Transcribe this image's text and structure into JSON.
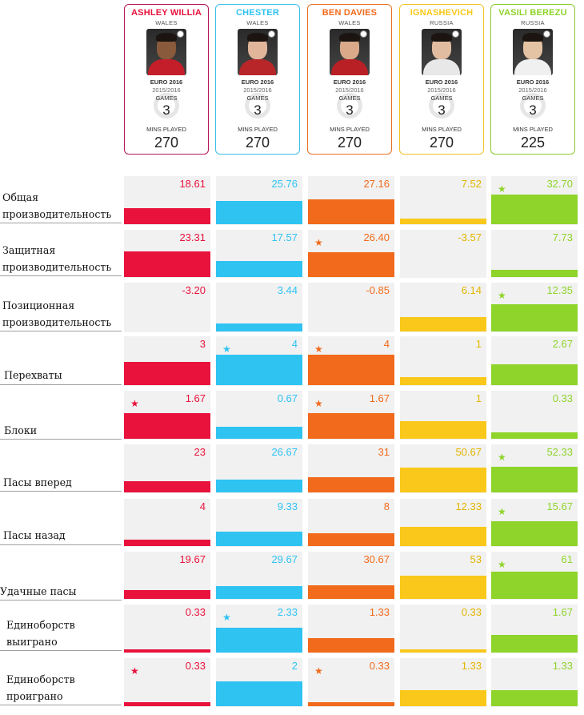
{
  "players": [
    {
      "name": "ASHLEY WILLIA",
      "country": "WALES",
      "competition": "EURO 2016",
      "season": "2015/2016",
      "games_label": "GAMES",
      "games": "3",
      "mins_label": "MINS PLAYED",
      "mins": "270",
      "color": "#e8123c",
      "border": "#b5155a",
      "shirt": "#c41e2a",
      "skin": "#8a5a3c"
    },
    {
      "name": "CHESTER",
      "country": "WALES",
      "competition": "EURO 2016",
      "season": "2015/2016",
      "games_label": "GAMES",
      "games": "3",
      "mins_label": "MINS PLAYED",
      "mins": "270",
      "color": "#2fc3f2",
      "border": "#3dbfe8",
      "shirt": "#b8262a",
      "skin": "#e0b59a"
    },
    {
      "name": "BEN DAVIES",
      "country": "WALES",
      "competition": "EURO 2016",
      "season": "2015/2016",
      "games_label": "GAMES",
      "games": "3",
      "mins_label": "MINS PLAYED",
      "mins": "270",
      "color": "#f26a1b",
      "border": "#e8711f",
      "shirt": "#b82026",
      "skin": "#d9a98a"
    },
    {
      "name": "IGNASHEVICH",
      "country": "RUSSIA",
      "competition": "EURO 2016",
      "season": "2015/2016",
      "games_label": "GAMES",
      "games": "3",
      "mins_label": "MINS PLAYED",
      "mins": "270",
      "color": "#f9c81a",
      "border": "#f3c22a",
      "shirt": "#e8e8e8",
      "skin": "#e2bca0"
    },
    {
      "name": "VASILI BEREZU",
      "country": "RUSSIA",
      "competition": "EURO 2016",
      "season": "2015/2016",
      "games_label": "GAMES",
      "games": "3",
      "mins_label": "MINS PLAYED",
      "mins": "225",
      "color": "#8ed42a",
      "border": "#8ccb2e",
      "shirt": "#f0f0f0",
      "skin": "#e4c3a4"
    }
  ],
  "chart_data": {
    "type": "bar",
    "series_names": [
      "ASHLEY WILLIA",
      "CHESTER",
      "BEN DAVIES",
      "IGNASHEVICH",
      "VASILI BEREZU"
    ],
    "categories": [
      "Общая производительность",
      "Защитная производительность",
      "Позиционная производительность",
      "Перехваты",
      "Блоки",
      "Пасы вперед",
      "Пасы назад",
      "Удачные пасы",
      "Единоборств выиграно",
      "Единоборств проиграно"
    ],
    "rows": [
      {
        "label": "Общая производительность",
        "values": [
          "18.61",
          "25.76",
          "27.16",
          "7.52",
          "32.70"
        ],
        "fill": [
          0.35,
          0.52,
          0.56,
          0.13,
          0.66
        ],
        "star": [
          false,
          false,
          false,
          false,
          true
        ]
      },
      {
        "label": "Защитная производительность",
        "values": [
          "23.31",
          "17.57",
          "26.40",
          "-3.57",
          "7.73"
        ],
        "fill": [
          0.58,
          0.35,
          0.55,
          0.0,
          0.16
        ],
        "star": [
          false,
          false,
          true,
          false,
          false
        ]
      },
      {
        "label": "Позиционная производительность",
        "values": [
          "-3.20",
          "3.44",
          "-0.85",
          "6.14",
          "12.35"
        ],
        "fill": [
          0.0,
          0.18,
          0.0,
          0.32,
          0.6
        ],
        "star": [
          false,
          false,
          false,
          false,
          true
        ]
      },
      {
        "label": "Перехваты",
        "values": [
          "3",
          "4",
          "4",
          "1",
          "2.67"
        ],
        "fill": [
          0.51,
          0.68,
          0.68,
          0.17,
          0.46
        ],
        "star": [
          false,
          true,
          true,
          false,
          false
        ]
      },
      {
        "label": "Блоки",
        "values": [
          "1.67",
          "0.67",
          "1.67",
          "1",
          "0.33"
        ],
        "fill": [
          0.58,
          0.26,
          0.58,
          0.39,
          0.14
        ],
        "star": [
          true,
          false,
          true,
          false,
          false
        ]
      },
      {
        "label": "Пасы вперед",
        "values": [
          "23",
          "26.67",
          "31",
          "50.67",
          "52.33"
        ],
        "fill": [
          0.25,
          0.29,
          0.34,
          0.56,
          0.57
        ],
        "star": [
          false,
          false,
          false,
          false,
          true
        ]
      },
      {
        "label": "Пасы назад",
        "values": [
          "4",
          "9.33",
          "8",
          "12.33",
          "15.67"
        ],
        "fill": [
          0.14,
          0.32,
          0.28,
          0.43,
          0.55
        ],
        "star": [
          false,
          false,
          false,
          false,
          true
        ]
      },
      {
        "label": "Удачные пасы",
        "values": [
          "19.67",
          "29.67",
          "30.67",
          "53",
          "61"
        ],
        "fill": [
          0.2,
          0.29,
          0.3,
          0.52,
          0.6
        ],
        "star": [
          false,
          false,
          false,
          false,
          true
        ]
      },
      {
        "label": "Единоборств выиграно",
        "values": [
          "0.33",
          "2.33",
          "1.33",
          "0.33",
          "1.67"
        ],
        "fill": [
          0.08,
          0.56,
          0.32,
          0.08,
          0.4
        ],
        "star": [
          false,
          true,
          false,
          false,
          false
        ]
      },
      {
        "label": "Единоборств проиграно",
        "values": [
          "0.33",
          "2",
          "0.33",
          "1.33",
          "1.33"
        ],
        "fill": [
          0.09,
          0.55,
          0.09,
          0.36,
          0.36
        ],
        "star": [
          true,
          false,
          true,
          false,
          false
        ]
      }
    ]
  }
}
